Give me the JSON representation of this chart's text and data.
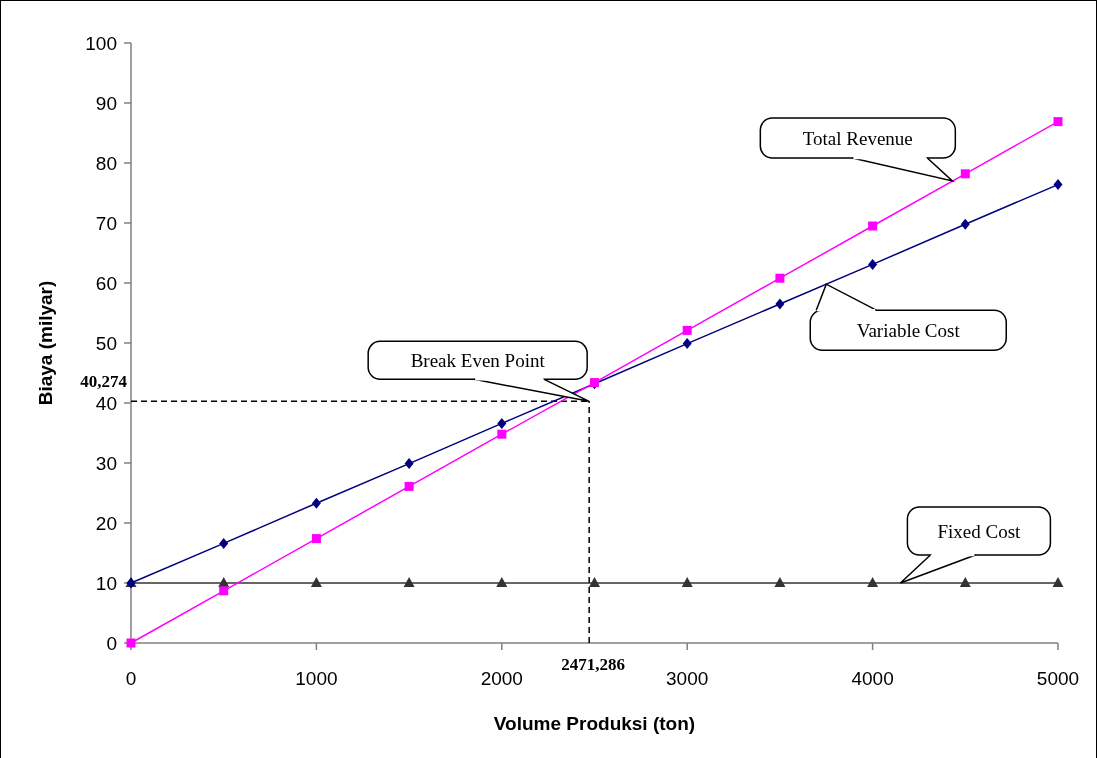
{
  "chart_data": {
    "type": "line",
    "xlabel": "Volume Produksi (ton)",
    "ylabel": "Biaya (milyar)",
    "x": [
      0,
      500,
      1000,
      1500,
      2000,
      2500,
      3000,
      3500,
      4000,
      4500,
      5000
    ],
    "xlim": [
      0,
      5000
    ],
    "xticks": [
      0,
      1000,
      2000,
      3000,
      4000,
      5000
    ],
    "ylim": [
      0,
      100
    ],
    "yticks": [
      0,
      10,
      20,
      30,
      40,
      50,
      60,
      70,
      80,
      90,
      100
    ],
    "grid": false,
    "series": [
      {
        "color": "#ff00ff",
        "marker": "square",
        "values": [
          0,
          8.7,
          17.4,
          26.1,
          34.8,
          43.4,
          52.1,
          60.8,
          69.5,
          78.2,
          86.9
        ]
      },
      {
        "color": "#000080",
        "marker": "diamond",
        "values": [
          10,
          16.6,
          23.3,
          29.9,
          36.6,
          43.2,
          49.9,
          56.5,
          63.1,
          69.8,
          76.4
        ]
      },
      {
        "color": "#333333",
        "marker": "triangle",
        "values": [
          10,
          10,
          10,
          10,
          10,
          10,
          10,
          10,
          10,
          10,
          10
        ]
      }
    ],
    "ref_lines": [
      {
        "axis": "x",
        "value": 2471.286,
        "label": "2471,286",
        "color": "#000000",
        "line_style": "dashed"
      },
      {
        "axis": "y",
        "value": 40.274,
        "label": "40,274",
        "color": "#000000",
        "line_style": "dashed"
      }
    ],
    "annotations": [
      {
        "text": "Total Revenue",
        "x": 4430,
        "y": 77
      },
      {
        "text": "Variable Cost",
        "x": 3750,
        "y": 59.8
      },
      {
        "text": "Break Even Point",
        "x": 2471.286,
        "y": 40.274
      },
      {
        "text": "Fixed Cost",
        "x": 4150,
        "y": 10
      }
    ]
  }
}
